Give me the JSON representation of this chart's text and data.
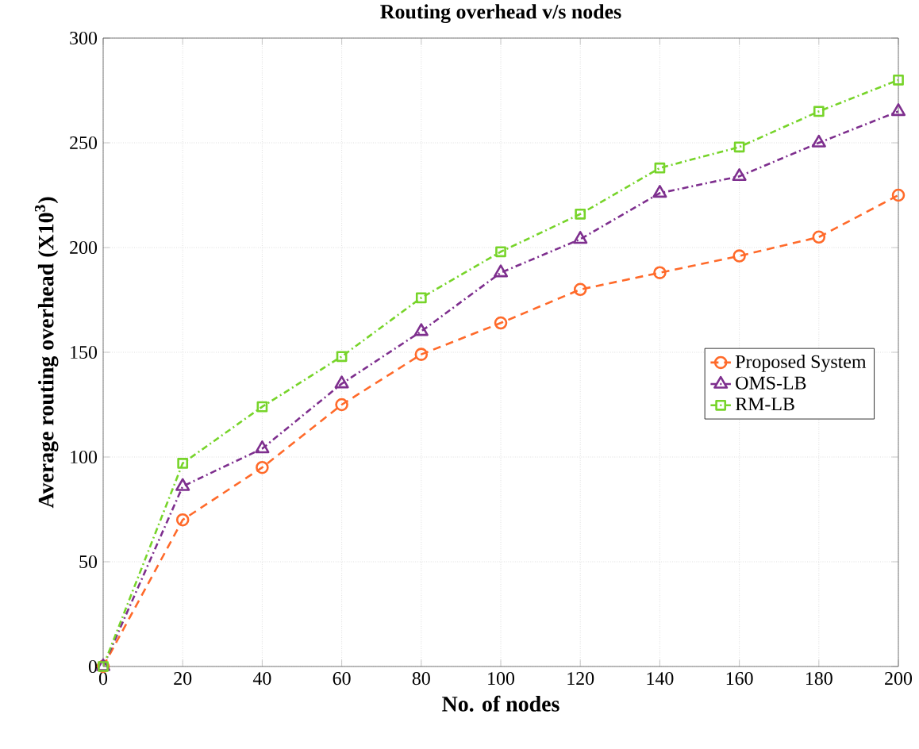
{
  "chart_data": {
    "type": "line",
    "title": "Routing overhead v/s nodes",
    "xlabel": "No. of nodes",
    "ylabel": "Average routing overhead (X10$^{3}$)",
    "x": [
      0,
      20,
      40,
      60,
      80,
      100,
      120,
      140,
      160,
      180,
      200
    ],
    "series": [
      {
        "name": "Proposed System",
        "color": "#ff6a2a",
        "marker": "circle",
        "line_style": "dashed",
        "values": [
          0,
          70,
          95,
          125,
          149,
          164,
          180,
          188,
          196,
          205,
          225
        ]
      },
      {
        "name": "OMS-LB",
        "color": "#7e2f8e",
        "marker": "triangle",
        "line_style": "dashdot",
        "values": [
          0,
          86,
          104,
          135,
          160,
          188,
          204,
          226,
          234,
          250,
          265
        ]
      },
      {
        "name": "RM-LB",
        "color": "#77d42a",
        "marker": "square",
        "line_style": "dashdot",
        "values": [
          0,
          97,
          124,
          148,
          176,
          198,
          216,
          238,
          248,
          265,
          280
        ]
      }
    ],
    "xlim": [
      0,
      200
    ],
    "ylim": [
      0,
      300
    ],
    "xticks": [
      0,
      20,
      40,
      60,
      80,
      100,
      120,
      140,
      160,
      180,
      200
    ],
    "yticks": [
      0,
      50,
      100,
      150,
      200,
      250,
      300
    ],
    "grid": true,
    "legend": "right"
  }
}
